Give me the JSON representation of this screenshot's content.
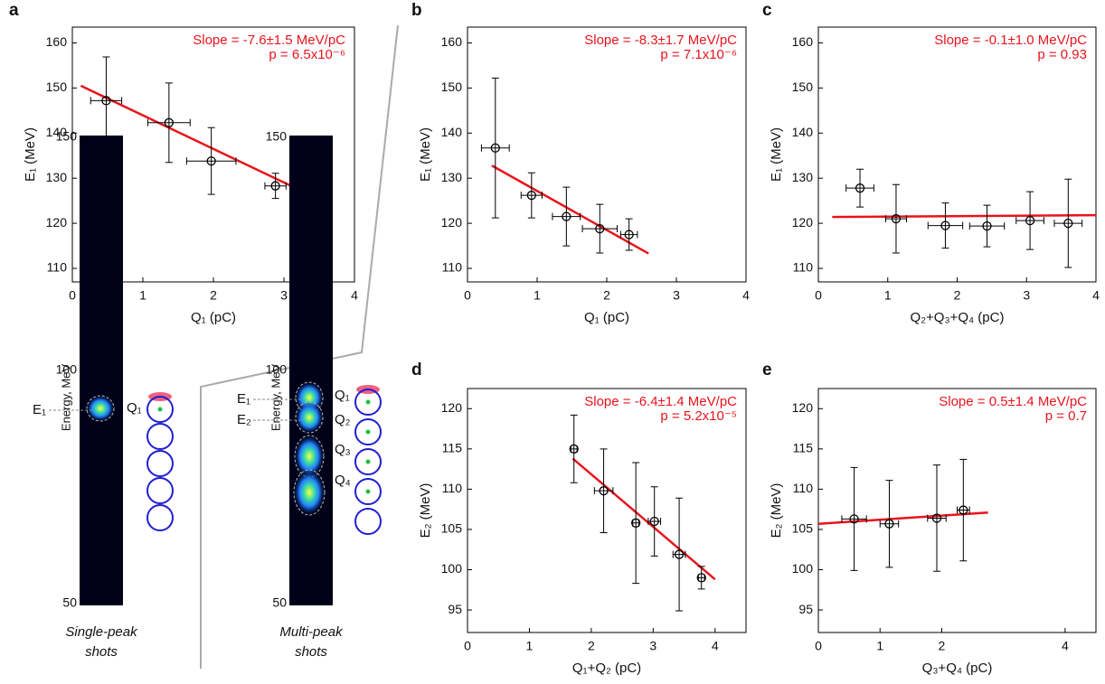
{
  "chart_data": [
    {
      "type": "errorbar",
      "panel": "a",
      "xlabel": "Q₁ (pC)",
      "ylabel": "E₁ (MeV)",
      "annotations": [
        "Slope = -7.6±1.5 MeV/pC",
        "p = 6.5x10⁻⁶"
      ],
      "xlim": [
        0,
        4
      ],
      "xticks": [
        0,
        1,
        2,
        3,
        4
      ],
      "ylim": [
        107,
        163.5
      ],
      "yticks": [
        110,
        120,
        130,
        140,
        150,
        160
      ],
      "series": [
        {
          "color": "#000000",
          "x": [
            0.48,
            1.37,
            1.97,
            2.88
          ],
          "values": [
            147.2,
            142.3,
            133.8,
            128.3
          ],
          "xerr": [
            0.22,
            0.3,
            0.35,
            0.15
          ],
          "yerr": [
            9.7,
            8.8,
            7.4,
            2.8
          ]
        }
      ],
      "fit": {
        "color": "#e8141b",
        "x": [
          0.12,
          3.3
        ],
        "values": [
          150.5,
          126.8
        ]
      }
    },
    {
      "type": "errorbar",
      "panel": "b",
      "xlabel": "Q₁ (pC)",
      "ylabel": "E₁ (MeV)",
      "annotations": [
        "Slope = -8.3±1.7 MeV/pC",
        "p = 7.1x10⁻⁶"
      ],
      "xlim": [
        0,
        4
      ],
      "xticks": [
        0,
        1,
        2,
        3,
        4
      ],
      "ylim": [
        107,
        163.5
      ],
      "yticks": [
        110,
        120,
        130,
        140,
        150,
        160
      ],
      "series": [
        {
          "color": "#000000",
          "x": [
            0.4,
            0.92,
            1.42,
            1.9,
            2.32
          ],
          "values": [
            136.7,
            126.2,
            121.5,
            118.8,
            117.5
          ],
          "xerr": [
            0.2,
            0.15,
            0.2,
            0.25,
            0.12
          ],
          "yerr": [
            15.5,
            5,
            6.5,
            5.4,
            3.5
          ]
        }
      ],
      "fit": {
        "color": "#e8141b",
        "x": [
          0.35,
          2.6
        ],
        "values": [
          132.8,
          113.3
        ]
      }
    },
    {
      "type": "errorbar",
      "panel": "c",
      "xlabel": "Q₂+Q₃+Q₄ (pC)",
      "ylabel": "E₁ (MeV)",
      "annotations": [
        "Slope = -0.1±1.0 MeV/pC",
        "p = 0.93"
      ],
      "xlim": [
        0,
        4
      ],
      "xticks": [
        0,
        1,
        2,
        3,
        4
      ],
      "ylim": [
        107,
        163.5
      ],
      "yticks": [
        110,
        120,
        130,
        140,
        150,
        160
      ],
      "series": [
        {
          "color": "#000000",
          "x": [
            0.6,
            1.12,
            1.83,
            2.43,
            3.05,
            3.6
          ],
          "values": [
            127.8,
            121,
            119.5,
            119.4,
            120.6,
            120
          ],
          "xerr": [
            0.2,
            0.15,
            0.25,
            0.25,
            0.2,
            0.2
          ],
          "yerr": [
            4.2,
            7.6,
            5,
            4.6,
            6.4,
            9.8
          ]
        }
      ],
      "fit": {
        "color": "#e8141b",
        "x": [
          0.2,
          4
        ],
        "values": [
          121.4,
          121.8
        ]
      }
    },
    {
      "type": "errorbar",
      "panel": "d",
      "xlabel": "Q₁+Q₂ (pC)",
      "ylabel": "E₂ (MeV)",
      "annotations": [
        "Slope = -6.4±1.4 MeV/pC",
        "p = 5.2x10⁻⁵"
      ],
      "xlim": [
        0,
        4.5
      ],
      "xticks": [
        0,
        1,
        2,
        3,
        4
      ],
      "ylim": [
        92.2,
        122.5
      ],
      "yticks": [
        95,
        100,
        105,
        110,
        115,
        120
      ],
      "series": [
        {
          "color": "#000000",
          "x": [
            1.72,
            2.2,
            2.72,
            3.02,
            3.42,
            3.78
          ],
          "values": [
            115,
            109.8,
            105.8,
            106,
            101.9,
            99
          ],
          "xerr": [
            0.05,
            0.15,
            0.05,
            0.1,
            0.1,
            0.05
          ],
          "yerr": [
            4.2,
            5.2,
            7.5,
            4.3,
            7,
            1.4
          ]
        }
      ],
      "fit": {
        "color": "#e8141b",
        "x": [
          1.7,
          4
        ],
        "values": [
          113.8,
          98.8
        ]
      }
    },
    {
      "type": "errorbar",
      "panel": "e",
      "xlabel": "Q₃+Q₄ (pC)",
      "ylabel": "E₂ (MeV)",
      "annotations": [
        "Slope = 0.5±1.4 MeV/pC",
        "p = 0.7"
      ],
      "xlim": [
        0,
        4.5
      ],
      "xticks": [
        0,
        1,
        2,
        4
      ],
      "ylim": [
        92.2,
        122.5
      ],
      "yticks": [
        95,
        100,
        105,
        110,
        115,
        120
      ],
      "series": [
        {
          "color": "#000000",
          "x": [
            0.58,
            1.15,
            1.92,
            2.35
          ],
          "values": [
            106.3,
            105.7,
            106.4,
            107.4
          ],
          "xerr": [
            0.2,
            0.15,
            0.15,
            0.1
          ],
          "yerr": [
            6.4,
            5.4,
            6.6,
            6.3
          ]
        }
      ],
      "fit": {
        "color": "#e8141b",
        "x": [
          0,
          2.75
        ],
        "values": [
          105.7,
          107.1
        ]
      }
    }
  ],
  "insets": [
    {
      "ylabel": "Energy, MeV",
      "ylim": [
        50,
        150
      ],
      "yticks": [
        150,
        100,
        50
      ],
      "peak_labels": [
        "E₁"
      ],
      "charge_labels": [
        "Q₁"
      ],
      "caption": [
        "Single-peak",
        "shots"
      ]
    },
    {
      "ylabel": "Energy, MeV",
      "ylim": [
        50,
        150
      ],
      "yticks": [
        150,
        100,
        50
      ],
      "peak_labels": [
        "E₁",
        "E₂"
      ],
      "charge_labels": [
        "Q₁",
        "Q₂",
        "Q₃",
        "Q₄"
      ],
      "caption": [
        "Multi-peak",
        "shots"
      ]
    }
  ]
}
